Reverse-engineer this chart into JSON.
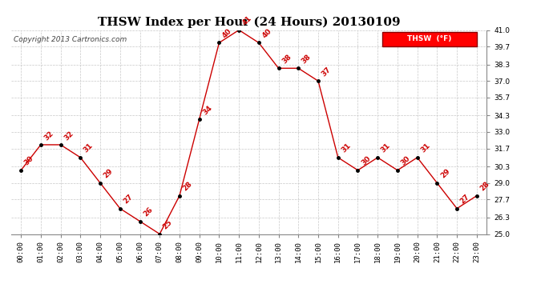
{
  "title": "THSW Index per Hour (24 Hours) 20130109",
  "copyright": "Copyright 2013 Cartronics.com",
  "legend_label": "THSW  (°F)",
  "hours": [
    0,
    1,
    2,
    3,
    4,
    5,
    6,
    7,
    8,
    9,
    10,
    11,
    12,
    13,
    14,
    15,
    16,
    17,
    18,
    19,
    20,
    21,
    22,
    23
  ],
  "values": [
    30,
    32,
    32,
    31,
    29,
    27,
    26,
    25,
    28,
    34,
    40,
    41,
    40,
    38,
    38,
    37,
    31,
    30,
    31,
    30,
    31,
    29,
    27,
    28
  ],
  "xlabels": [
    "00:00",
    "01:00",
    "02:00",
    "03:00",
    "04:00",
    "05:00",
    "06:00",
    "07:00",
    "08:00",
    "09:00",
    "10:00",
    "11:00",
    "12:00",
    "13:00",
    "14:00",
    "15:00",
    "16:00",
    "17:00",
    "18:00",
    "19:00",
    "20:00",
    "21:00",
    "22:00",
    "23:00"
  ],
  "ylim": [
    25.0,
    41.0
  ],
  "yticks": [
    25.0,
    26.3,
    27.7,
    29.0,
    30.3,
    31.7,
    33.0,
    34.3,
    35.7,
    37.0,
    38.3,
    39.7,
    41.0
  ],
  "ytick_labels": [
    "25.0",
    "26.3",
    "27.7",
    "29.0",
    "30.3",
    "31.7",
    "33.0",
    "34.3",
    "35.7",
    "37.0",
    "38.3",
    "39.7",
    "41.0"
  ],
  "line_color": "#cc0000",
  "marker_color": "#000000",
  "annotation_color": "#cc0000",
  "bg_color": "#ffffff",
  "grid_color": "#c8c8c8",
  "title_fontsize": 11,
  "annotation_fontsize": 6.5,
  "copyright_fontsize": 6.5,
  "tick_fontsize": 6.5
}
